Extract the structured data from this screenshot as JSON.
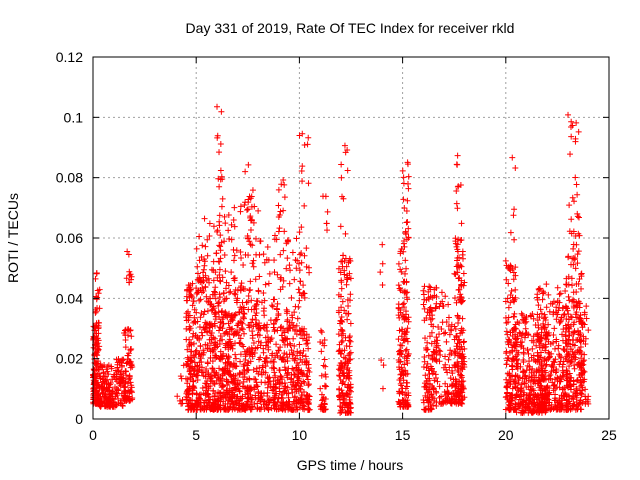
{
  "chart_data": {
    "type": "scatter",
    "title": "Day 331 of 2019, Rate Of TEC Index for receiver rkld",
    "xlabel": "GPS time / hours",
    "ylabel": "ROTI / TECUs",
    "xlim": [
      0,
      25
    ],
    "ylim": [
      0,
      0.12
    ],
    "xticks": [
      0,
      5,
      10,
      15,
      20,
      25
    ],
    "xtick_labels": [
      "0",
      "5",
      "10",
      "15",
      "20",
      "25"
    ],
    "yticks": [
      0,
      0.02,
      0.04,
      0.06,
      0.08,
      0.1,
      0.12
    ],
    "ytick_labels": [
      "0",
      "0.02",
      "0.04",
      "0.06",
      "0.08",
      "0.1",
      "0.12"
    ],
    "grid": true,
    "marker": "+",
    "color": "#ff0000",
    "series": [
      {
        "name": "ROTI",
        "clusters": [
          {
            "x_range": [
              0.0,
              0.3
            ],
            "y_range": [
              0.005,
              0.032
            ],
            "n": 150
          },
          {
            "x_range": [
              0.1,
              0.35
            ],
            "y_range": [
              0.035,
              0.051
            ],
            "n": 14
          },
          {
            "x_range": [
              0.3,
              1.0
            ],
            "y_range": [
              0.004,
              0.018
            ],
            "n": 120
          },
          {
            "x_range": [
              1.0,
              1.5
            ],
            "y_range": [
              0.004,
              0.02
            ],
            "n": 70
          },
          {
            "x_range": [
              1.5,
              1.9
            ],
            "y_range": [
              0.006,
              0.03
            ],
            "n": 80
          },
          {
            "x_range": [
              1.6,
              1.9
            ],
            "y_range": [
              0.045,
              0.056
            ],
            "n": 10
          },
          {
            "x_range": [
              4.0,
              4.4
            ],
            "y_range": [
              0.005,
              0.018
            ],
            "n": 8
          },
          {
            "x_range": [
              4.5,
              6.0
            ],
            "y_range": [
              0.003,
              0.045
            ],
            "n": 380
          },
          {
            "x_range": [
              5.0,
              6.2
            ],
            "y_range": [
              0.045,
              0.068
            ],
            "n": 50
          },
          {
            "x_range": [
              6.0,
              8.0
            ],
            "y_range": [
              0.003,
              0.04
            ],
            "n": 440
          },
          {
            "x_range": [
              6.0,
              8.0
            ],
            "y_range": [
              0.04,
              0.075
            ],
            "n": 80
          },
          {
            "x_range": [
              6.0,
              6.3
            ],
            "y_range": [
              0.07,
              0.106
            ],
            "n": 14
          },
          {
            "x_range": [
              7.3,
              7.8
            ],
            "y_range": [
              0.06,
              0.087
            ],
            "n": 16
          },
          {
            "x_range": [
              8.0,
              10.5
            ],
            "y_range": [
              0.003,
              0.03
            ],
            "n": 380
          },
          {
            "x_range": [
              8.0,
              10.0
            ],
            "y_range": [
              0.03,
              0.06
            ],
            "n": 100
          },
          {
            "x_range": [
              8.8,
              9.3
            ],
            "y_range": [
              0.06,
              0.08
            ],
            "n": 14
          },
          {
            "x_range": [
              10.0,
              10.5
            ],
            "y_range": [
              0.04,
              0.096
            ],
            "n": 30
          },
          {
            "x_range": [
              11.0,
              11.3
            ],
            "y_range": [
              0.003,
              0.034
            ],
            "n": 40
          },
          {
            "x_range": [
              11.1,
              11.4
            ],
            "y_range": [
              0.062,
              0.074
            ],
            "n": 6
          },
          {
            "x_range": [
              11.9,
              12.5
            ],
            "y_range": [
              0.002,
              0.055
            ],
            "n": 180
          },
          {
            "x_range": [
              12.0,
              12.4
            ],
            "y_range": [
              0.06,
              0.092
            ],
            "n": 10
          },
          {
            "x_range": [
              13.9,
              14.1
            ],
            "y_range": [
              0.01,
              0.058
            ],
            "n": 7
          },
          {
            "x_range": [
              14.8,
              15.3
            ],
            "y_range": [
              0.004,
              0.06
            ],
            "n": 150
          },
          {
            "x_range": [
              15.0,
              15.3
            ],
            "y_range": [
              0.06,
              0.086
            ],
            "n": 20
          },
          {
            "x_range": [
              16.0,
              16.7
            ],
            "y_range": [
              0.003,
              0.045
            ],
            "n": 140
          },
          {
            "x_range": [
              16.7,
              17.5
            ],
            "y_range": [
              0.005,
              0.042
            ],
            "n": 80
          },
          {
            "x_range": [
              17.5,
              18.0
            ],
            "y_range": [
              0.005,
              0.06
            ],
            "n": 180
          },
          {
            "x_range": [
              17.6,
              17.9
            ],
            "y_range": [
              0.06,
              0.089
            ],
            "n": 10
          },
          {
            "x_range": [
              20.0,
              20.5
            ],
            "y_range": [
              0.003,
              0.053
            ],
            "n": 150
          },
          {
            "x_range": [
              20.2,
              20.5
            ],
            "y_range": [
              0.058,
              0.088
            ],
            "n": 6
          },
          {
            "x_range": [
              20.5,
              22.0
            ],
            "y_range": [
              0.002,
              0.035
            ],
            "n": 300
          },
          {
            "x_range": [
              21.5,
              23.0
            ],
            "y_range": [
              0.003,
              0.045
            ],
            "n": 260
          },
          {
            "x_range": [
              22.9,
              23.7
            ],
            "y_range": [
              0.003,
              0.055
            ],
            "n": 220
          },
          {
            "x_range": [
              23.0,
              23.6
            ],
            "y_range": [
              0.055,
              0.101
            ],
            "n": 30
          },
          {
            "x_range": [
              23.6,
              24.0
            ],
            "y_range": [
              0.005,
              0.038
            ],
            "n": 50
          }
        ]
      }
    ]
  }
}
